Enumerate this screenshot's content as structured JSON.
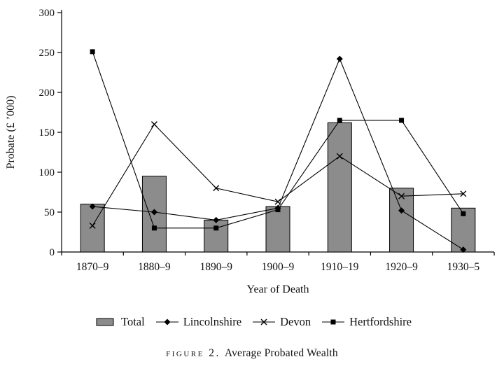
{
  "caption": {
    "label": "figure 2.",
    "title": "Average Probated Wealth"
  },
  "chart_data": {
    "type": "bar",
    "subtype": "bar-and-line-combo",
    "title": "Average Probated Wealth",
    "categories": [
      "1870–9",
      "1880–9",
      "1890–9",
      "1900–9",
      "1910–19",
      "1920–9",
      "1930–5"
    ],
    "bar_series": {
      "name": "Total",
      "values": [
        60,
        95,
        40,
        57,
        162,
        80,
        55
      ],
      "color": "#8c8c8c"
    },
    "line_series": [
      {
        "name": "Lincolnshire",
        "marker": "diamond",
        "color": "#000000",
        "values": [
          57,
          50,
          40,
          55,
          242,
          52,
          3
        ]
      },
      {
        "name": "Devon",
        "marker": "x",
        "color": "#000000",
        "values": [
          33,
          160,
          80,
          63,
          120,
          70,
          73
        ]
      },
      {
        "name": "Hertfordshire",
        "marker": "square",
        "color": "#000000",
        "values": [
          251,
          30,
          30,
          53,
          165,
          165,
          48
        ]
      }
    ],
    "xlabel": "Year of Death",
    "ylabel": "Probate (£ ’000)",
    "ylim": [
      0,
      300
    ],
    "yticks": [
      0,
      50,
      100,
      150,
      200,
      250,
      300
    ],
    "grid": false,
    "legend_position": "bottom"
  }
}
